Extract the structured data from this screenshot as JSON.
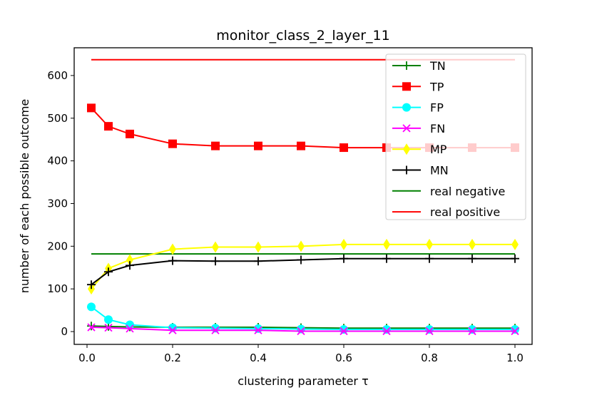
{
  "chart_data": {
    "type": "line",
    "title": "monitor_class_2_layer_11",
    "xlabel": "clustering parameter τ",
    "ylabel": "number of each possible outcome",
    "xlim": [
      -0.03,
      1.04
    ],
    "ylim": [
      -30,
      665
    ],
    "x_ticks": [
      0.0,
      0.2,
      0.4,
      0.6,
      0.8,
      1.0
    ],
    "x_tick_labels": [
      "0.0",
      "0.2",
      "0.4",
      "0.6",
      "0.8",
      "1.0"
    ],
    "y_ticks": [
      0,
      100,
      200,
      300,
      400,
      500,
      600
    ],
    "y_tick_labels": [
      "0",
      "100",
      "200",
      "300",
      "400",
      "500",
      "600"
    ],
    "x": [
      0.01,
      0.05,
      0.1,
      0.2,
      0.3,
      0.4,
      0.5,
      0.6,
      0.7,
      0.8,
      0.9,
      1.0
    ],
    "legend_position": "top-right",
    "series": [
      {
        "name": "TN",
        "color": "#008000",
        "marker": "plus",
        "values": [
          13,
          12,
          11,
          10,
          10,
          10,
          9,
          8,
          8,
          8,
          8,
          8
        ]
      },
      {
        "name": "TP",
        "color": "#ff0000",
        "marker": "square",
        "values": [
          524,
          481,
          463,
          440,
          435,
          435,
          435,
          431,
          431,
          431,
          431,
          431
        ]
      },
      {
        "name": "FP",
        "color": "#00ffff",
        "marker": "circle",
        "values": [
          58,
          28,
          16,
          9,
          8,
          7,
          6,
          5,
          5,
          5,
          5,
          5
        ]
      },
      {
        "name": "FN",
        "color": "#ff00ff",
        "marker": "x",
        "values": [
          10,
          9,
          7,
          3,
          3,
          3,
          1,
          1,
          1,
          1,
          1,
          1
        ]
      },
      {
        "name": "MP",
        "color": "#ffff00",
        "marker": "diamond",
        "values": [
          100,
          148,
          168,
          193,
          198,
          198,
          200,
          204,
          204,
          204,
          204,
          204
        ]
      },
      {
        "name": "MN",
        "color": "#000000",
        "marker": "plus",
        "values": [
          110,
          140,
          155,
          166,
          165,
          165,
          168,
          171,
          171,
          171,
          171,
          171
        ]
      }
    ],
    "reference_lines": [
      {
        "name": "real negative",
        "color": "#008000",
        "value": 182
      },
      {
        "name": "real positive",
        "color": "#ff0000",
        "value": 637
      }
    ]
  }
}
